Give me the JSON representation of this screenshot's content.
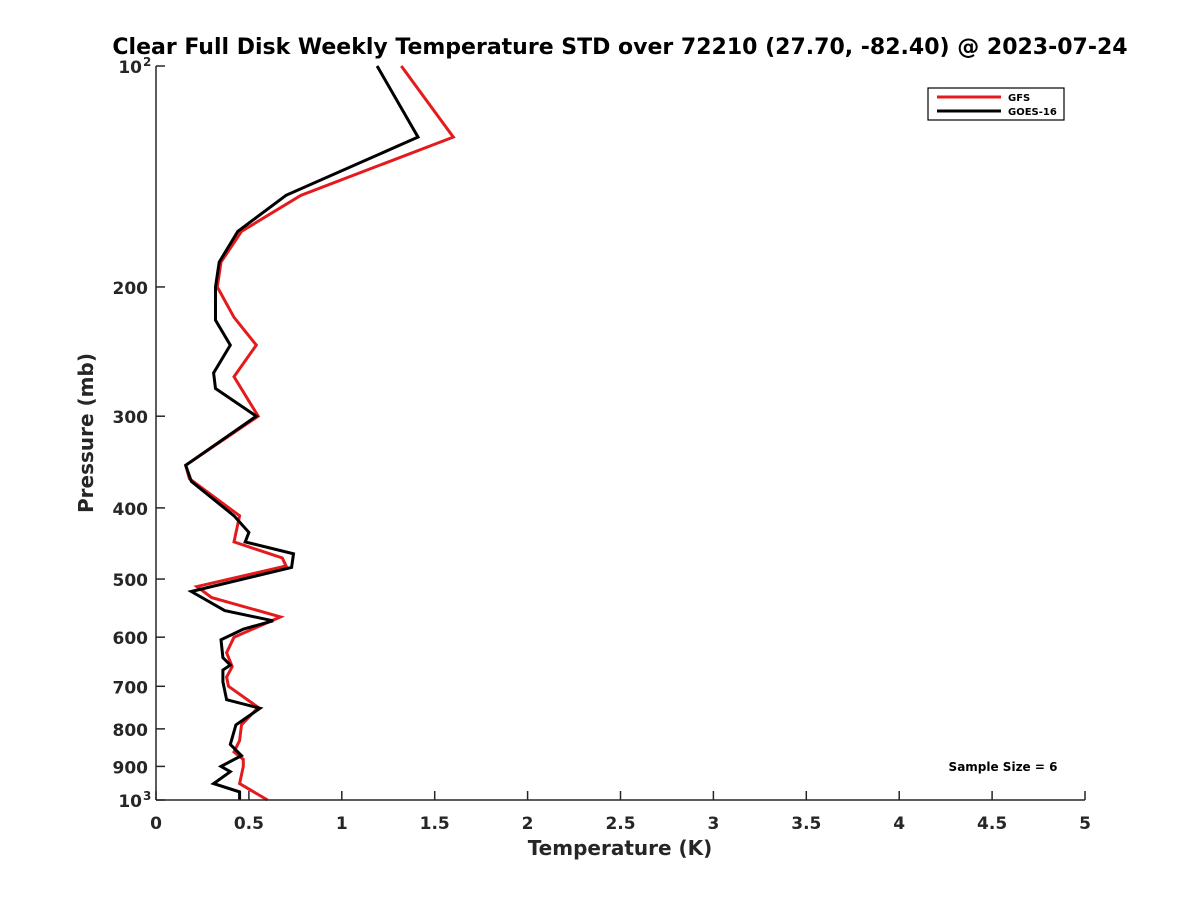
{
  "chart_data": {
    "type": "line",
    "title": "Clear Full Disk Weekly Temperature STD over 72210 (27.70, -82.40) @ 2023-07-24",
    "xlabel": "Temperature (K)",
    "ylabel": "Pressure (mb)",
    "xlim": [
      0,
      5
    ],
    "ylim": [
      1000,
      100
    ],
    "y_scale": "log",
    "y_reversed": true,
    "grid": false,
    "legend_position": "top-right",
    "x_ticks": [
      0,
      0.5,
      1,
      1.5,
      2,
      2.5,
      3,
      3.5,
      4,
      4.5,
      5
    ],
    "x_tick_labels": [
      "0",
      "0.5",
      "1",
      "1.5",
      "2",
      "2.5",
      "3",
      "3.5",
      "4",
      "4.5",
      "5"
    ],
    "y_ticks": [
      {
        "value": 100,
        "label": "10",
        "sup": "2"
      },
      {
        "value": 200,
        "label": "200",
        "sup": ""
      },
      {
        "value": 300,
        "label": "300",
        "sup": ""
      },
      {
        "value": 400,
        "label": "400",
        "sup": ""
      },
      {
        "value": 500,
        "label": "500",
        "sup": ""
      },
      {
        "value": 600,
        "label": "600",
        "sup": ""
      },
      {
        "value": 700,
        "label": "700",
        "sup": ""
      },
      {
        "value": 800,
        "label": "800",
        "sup": ""
      },
      {
        "value": 900,
        "label": "900",
        "sup": ""
      },
      {
        "value": 1000,
        "label": "10",
        "sup": "3"
      }
    ],
    "annotation": "Sample Size = 6",
    "series": [
      {
        "name": "GFS",
        "color": "#e41a1c",
        "points": [
          [
            1.32,
            100
          ],
          [
            1.6,
            125
          ],
          [
            0.78,
            150
          ],
          [
            0.46,
            168
          ],
          [
            0.35,
            185
          ],
          [
            0.33,
            200
          ],
          [
            0.42,
            220
          ],
          [
            0.54,
            240
          ],
          [
            0.42,
            265
          ],
          [
            0.55,
            300
          ],
          [
            0.16,
            350
          ],
          [
            0.18,
            365
          ],
          [
            0.45,
            410
          ],
          [
            0.42,
            445
          ],
          [
            0.68,
            468
          ],
          [
            0.7,
            480
          ],
          [
            0.22,
            512
          ],
          [
            0.3,
            530
          ],
          [
            0.67,
            563
          ],
          [
            0.42,
            600
          ],
          [
            0.38,
            630
          ],
          [
            0.41,
            658
          ],
          [
            0.38,
            680
          ],
          [
            0.39,
            700
          ],
          [
            0.55,
            748
          ],
          [
            0.46,
            790
          ],
          [
            0.45,
            830
          ],
          [
            0.42,
            860
          ],
          [
            0.47,
            880
          ],
          [
            0.47,
            900
          ],
          [
            0.45,
            950
          ],
          [
            0.6,
            1000
          ]
        ]
      },
      {
        "name": "GOES-16",
        "color": "#000000",
        "points": [
          [
            1.19,
            100
          ],
          [
            1.41,
            125
          ],
          [
            0.7,
            150
          ],
          [
            0.44,
            168
          ],
          [
            0.34,
            185
          ],
          [
            0.32,
            200
          ],
          [
            0.32,
            222
          ],
          [
            0.4,
            240
          ],
          [
            0.31,
            262
          ],
          [
            0.32,
            275
          ],
          [
            0.54,
            300
          ],
          [
            0.16,
            350
          ],
          [
            0.19,
            368
          ],
          [
            0.42,
            410
          ],
          [
            0.5,
            432
          ],
          [
            0.48,
            445
          ],
          [
            0.74,
            462
          ],
          [
            0.73,
            482
          ],
          [
            0.19,
            520
          ],
          [
            0.37,
            552
          ],
          [
            0.63,
            570
          ],
          [
            0.47,
            585
          ],
          [
            0.35,
            605
          ],
          [
            0.36,
            640
          ],
          [
            0.4,
            655
          ],
          [
            0.36,
            665
          ],
          [
            0.36,
            690
          ],
          [
            0.38,
            730
          ],
          [
            0.56,
            750
          ],
          [
            0.43,
            790
          ],
          [
            0.4,
            840
          ],
          [
            0.46,
            870
          ],
          [
            0.35,
            900
          ],
          [
            0.4,
            915
          ],
          [
            0.31,
            950
          ],
          [
            0.45,
            975
          ],
          [
            0.45,
            1000
          ]
        ]
      }
    ]
  }
}
